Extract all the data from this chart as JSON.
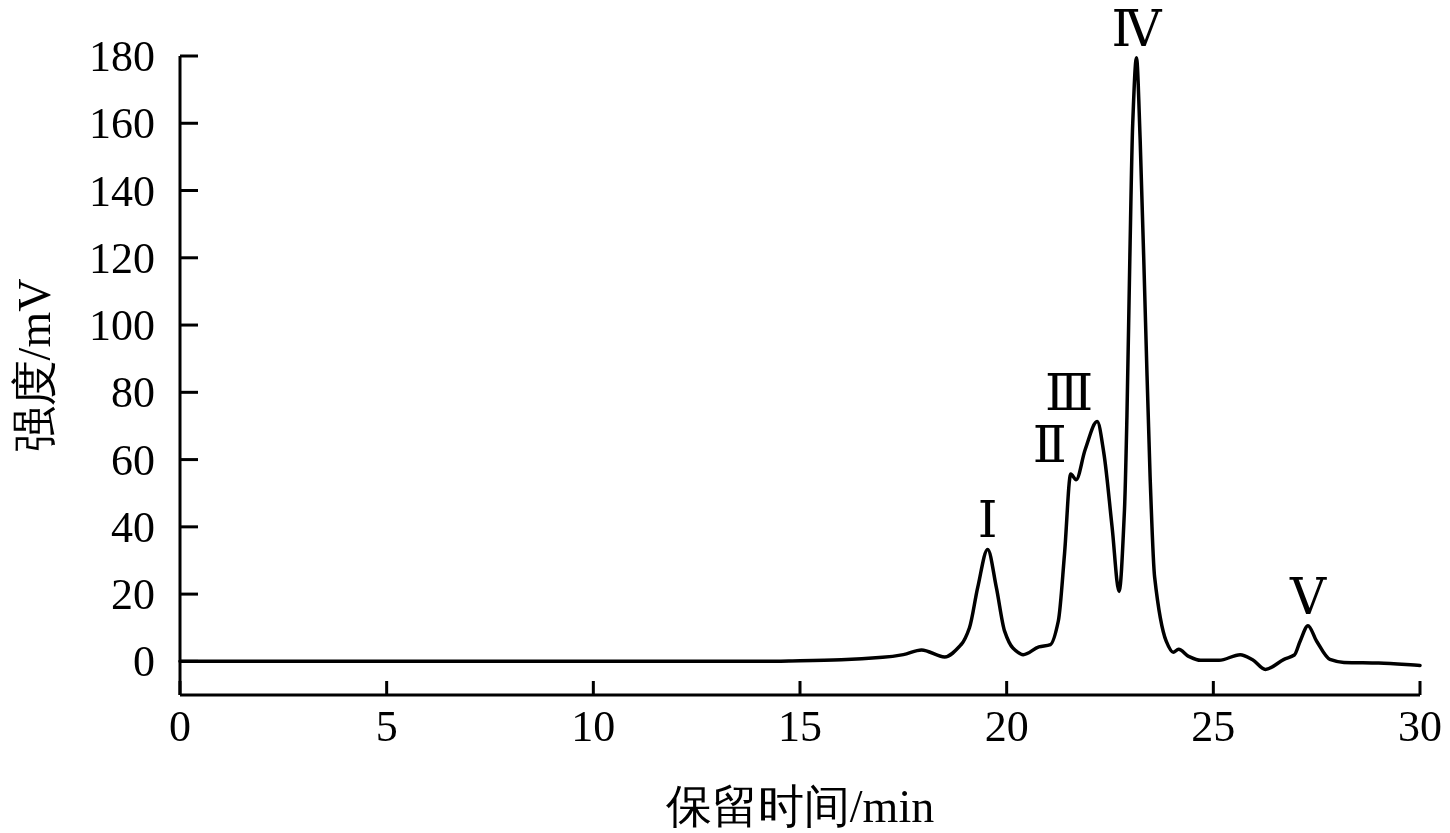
{
  "chart_data": {
    "type": "line",
    "xlabel": "保留时间/min",
    "ylabel": "强度/mV",
    "xlim": [
      0,
      30
    ],
    "xticks": [
      0,
      5,
      10,
      15,
      20,
      25,
      30
    ],
    "ylim": [
      -10,
      180
    ],
    "yticks": [
      0,
      20,
      40,
      60,
      80,
      100,
      120,
      140,
      160,
      180
    ],
    "marker": "none",
    "line_style": "solid",
    "series": [
      {
        "color": "#000000",
        "x": [
          0,
          5,
          10,
          14,
          15,
          16,
          17,
          17.5,
          17.94,
          18.5,
          18.9,
          19.1,
          19.3,
          19.54,
          19.75,
          19.95,
          20.15,
          20.4,
          20.78,
          21.06,
          21.25,
          21.4,
          21.55,
          21.68,
          21.9,
          22.19,
          22.35,
          22.55,
          22.72,
          22.85,
          22.91,
          22.98,
          23.05,
          23.14,
          23.23,
          23.36,
          23.47,
          23.58,
          23.86,
          24.03,
          24.16,
          24.4,
          24.69,
          25.14,
          25.65,
          25.95,
          26.26,
          26.71,
          26.96,
          27.1,
          27.29,
          27.5,
          27.82,
          28.16,
          29,
          30
        ],
        "values": [
          0,
          0,
          0,
          0,
          0.2,
          0.5,
          1.2,
          2,
          3.4,
          1.3,
          5,
          10,
          22,
          33.3,
          22,
          9,
          4,
          2,
          4.3,
          5,
          12,
          32,
          55.7,
          54,
          63,
          71.3,
          62,
          40,
          20.8,
          45,
          73,
          120,
          160,
          179.5,
          155,
          100.7,
          55,
          25,
          6,
          2.7,
          3.6,
          1.5,
          0.3,
          0.3,
          2,
          0.5,
          -2.4,
          0.6,
          1.9,
          6,
          10.6,
          6,
          0.6,
          -0.3,
          -0.5,
          -1.2
        ]
      }
    ],
    "annotations": [
      {
        "text": "Ⅰ",
        "x": 19.54,
        "y": 33.3
      },
      {
        "text": "Ⅱ",
        "x": 21.55,
        "y": 55.7
      },
      {
        "text": "Ⅲ",
        "x": 22.19,
        "y": 71.3
      },
      {
        "text": "Ⅳ",
        "x": 23.14,
        "y": 179.5
      },
      {
        "text": "Ⅴ",
        "x": 27.29,
        "y": 10.6
      }
    ]
  }
}
